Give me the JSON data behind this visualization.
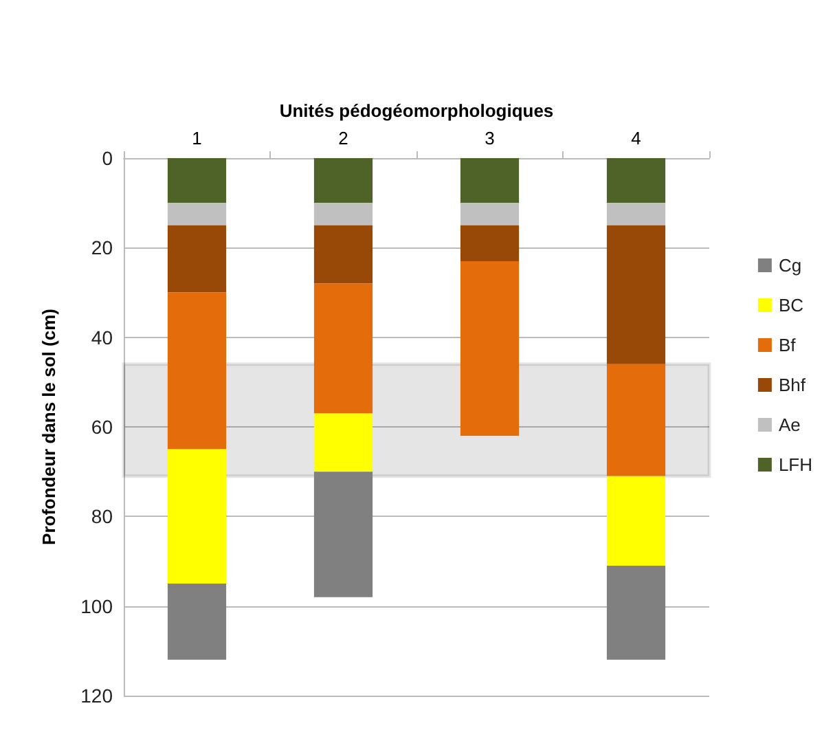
{
  "chart_data": {
    "type": "bar",
    "stacked": true,
    "xlabel": "Unités pédogéomorphologiques",
    "ylabel": "Profondeur dans le sol (cm)",
    "categories": [
      "1",
      "2",
      "3",
      "4"
    ],
    "series": [
      {
        "name": "LFH",
        "color": "#4f6228",
        "values": [
          10,
          10,
          10,
          10
        ]
      },
      {
        "name": "Ae",
        "color": "#c0c0c0",
        "values": [
          5,
          5,
          5,
          5
        ]
      },
      {
        "name": "Bhf",
        "color": "#984807",
        "values": [
          15,
          13,
          8,
          31
        ]
      },
      {
        "name": "Bf",
        "color": "#e46c0a",
        "values": [
          35,
          29,
          39,
          25
        ]
      },
      {
        "name": "BC",
        "color": "#ffff00",
        "values": [
          30,
          13,
          null,
          20
        ]
      },
      {
        "name": "Cg",
        "color": "#808080",
        "values": [
          17,
          28,
          null,
          21
        ]
      }
    ],
    "ylim": [
      120,
      0
    ],
    "yticks": [
      0,
      20,
      40,
      60,
      80,
      100,
      120
    ],
    "grid": "y",
    "legend": "right",
    "bands": [
      {
        "axis": "y",
        "from": 46,
        "to": 71,
        "color": "#000000"
      }
    ]
  }
}
